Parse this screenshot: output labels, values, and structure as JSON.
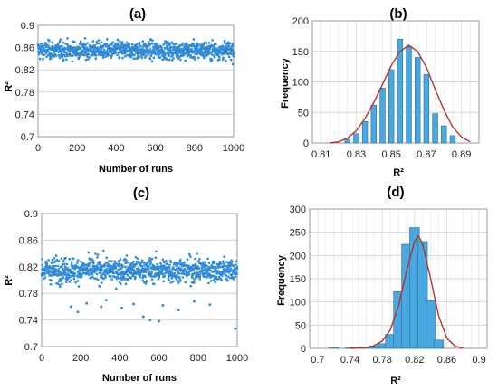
{
  "colors": {
    "point": "#2e8bd8",
    "bar": "#4aa8e0",
    "bar_edge": "#2b6aa3",
    "curve": "#b3322a",
    "grid": "#d4d4d4",
    "axis": "#555555",
    "text": "#222222"
  },
  "chart_data": [
    {
      "id": "a",
      "panel_label": "(a)",
      "type": "scatter",
      "xlabel": "Number of runs",
      "ylabel": "R²",
      "xlim": [
        0,
        1000
      ],
      "ylim": [
        0.7,
        0.9
      ],
      "xticks": [
        "0",
        "200",
        "400",
        "600",
        "800",
        "1000"
      ],
      "yticks": [
        "0.7",
        "0.74",
        "0.78",
        "0.82",
        "0.86",
        "0.9"
      ],
      "n_points": 1000,
      "center": 0.855,
      "spread": 0.011,
      "outliers": [],
      "grid": "horizontal"
    },
    {
      "id": "b",
      "panel_label": "(b)",
      "type": "bar",
      "xlabel": "R²",
      "ylabel": "Frequency",
      "xlim": [
        0.805,
        0.9
      ],
      "ylim": [
        0,
        200
      ],
      "xticks": [
        "0.81",
        "0.83",
        "0.85",
        "0.87",
        "0.89"
      ],
      "yticks": [
        "0",
        "50",
        "100",
        "150",
        "200"
      ],
      "x": [
        0.825,
        0.83,
        0.835,
        0.84,
        0.845,
        0.85,
        0.855,
        0.86,
        0.865,
        0.87,
        0.875,
        0.88,
        0.885
      ],
      "values": [
        6,
        15,
        35,
        62,
        90,
        120,
        170,
        158,
        140,
        112,
        48,
        28,
        12
      ],
      "fit_curve": {
        "x": [
          0.815,
          0.82,
          0.825,
          0.83,
          0.835,
          0.84,
          0.845,
          0.85,
          0.855,
          0.86,
          0.865,
          0.87,
          0.875,
          0.88,
          0.885,
          0.89,
          0.895
        ],
        "y": [
          0,
          2,
          8,
          20,
          40,
          66,
          96,
          127,
          150,
          160,
          150,
          124,
          88,
          54,
          26,
          10,
          2
        ]
      },
      "grid": "both"
    },
    {
      "id": "c",
      "panel_label": "(c)",
      "type": "scatter",
      "xlabel": "Number of runs",
      "ylabel": "R²",
      "xlim": [
        0,
        1000
      ],
      "ylim": [
        0.7,
        0.9
      ],
      "xticks": [
        "0",
        "200",
        "400",
        "600",
        "800",
        "1000"
      ],
      "yticks": [
        "0.7",
        "0.74",
        "0.78",
        "0.82",
        "0.86",
        "0.9"
      ],
      "n_points": 1000,
      "center": 0.815,
      "spread": 0.013,
      "outliers": [
        [
          150,
          0.76
        ],
        [
          185,
          0.752
        ],
        [
          230,
          0.765
        ],
        [
          305,
          0.76
        ],
        [
          330,
          0.77
        ],
        [
          410,
          0.758
        ],
        [
          470,
          0.764
        ],
        [
          520,
          0.745
        ],
        [
          555,
          0.74
        ],
        [
          600,
          0.738
        ],
        [
          620,
          0.762
        ],
        [
          700,
          0.755
        ],
        [
          780,
          0.768
        ],
        [
          860,
          0.763
        ],
        [
          990,
          0.727
        ]
      ],
      "grid": "horizontal"
    },
    {
      "id": "d",
      "panel_label": "(d)",
      "type": "bar",
      "xlabel": "R²",
      "ylabel": "Frequency",
      "xlim": [
        0.69,
        0.91
      ],
      "ylim": [
        0,
        300
      ],
      "xticks": [
        "0.7",
        "0.74",
        "0.78",
        "0.82",
        "0.86",
        "0.9"
      ],
      "yticks": [
        "0",
        "50",
        "100",
        "150",
        "200",
        "250",
        "300"
      ],
      "x": [
        0.72,
        0.74,
        0.76,
        0.77,
        0.78,
        0.79,
        0.8,
        0.81,
        0.82,
        0.83,
        0.84,
        0.85
      ],
      "values": [
        1,
        1,
        2,
        5,
        10,
        30,
        122,
        224,
        260,
        230,
        103,
        18
      ],
      "fit_curve": {
        "x": [
          0.74,
          0.76,
          0.77,
          0.78,
          0.79,
          0.8,
          0.81,
          0.82,
          0.825,
          0.83,
          0.84,
          0.85,
          0.86,
          0.87,
          0.88
        ],
        "y": [
          0,
          2,
          6,
          16,
          40,
          90,
          165,
          230,
          242,
          225,
          150,
          70,
          22,
          5,
          0
        ]
      },
      "grid": "both"
    }
  ]
}
